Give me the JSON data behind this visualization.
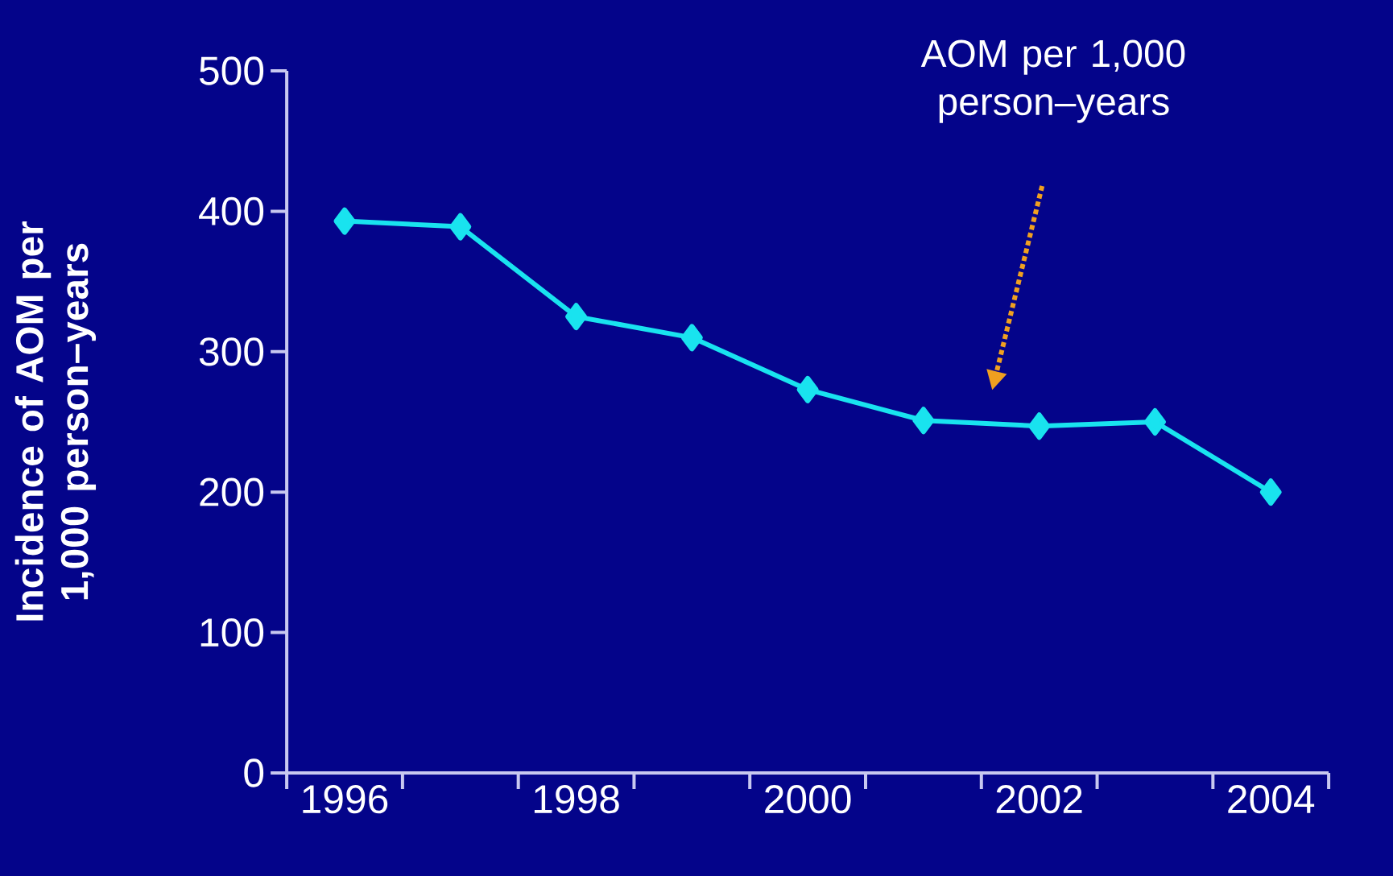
{
  "chart_data": {
    "type": "line",
    "ylabel": "Incidence of AOM per 1,000 person–years",
    "categories": [
      "1996",
      null,
      "1998",
      null,
      "2000",
      null,
      "2002",
      null,
      "2004"
    ],
    "series": [
      {
        "color": "#19e3ef",
        "values": [
          393,
          389,
          325,
          310,
          273,
          251,
          247,
          250,
          200
        ]
      }
    ],
    "ylim": [
      0,
      500
    ],
    "yticks": [
      0,
      100,
      200,
      300,
      400,
      500
    ],
    "marker": "diamond",
    "line_style": "solid",
    "grid": false,
    "annotations": [
      "AOM per 1,000 person–years"
    ]
  }
}
